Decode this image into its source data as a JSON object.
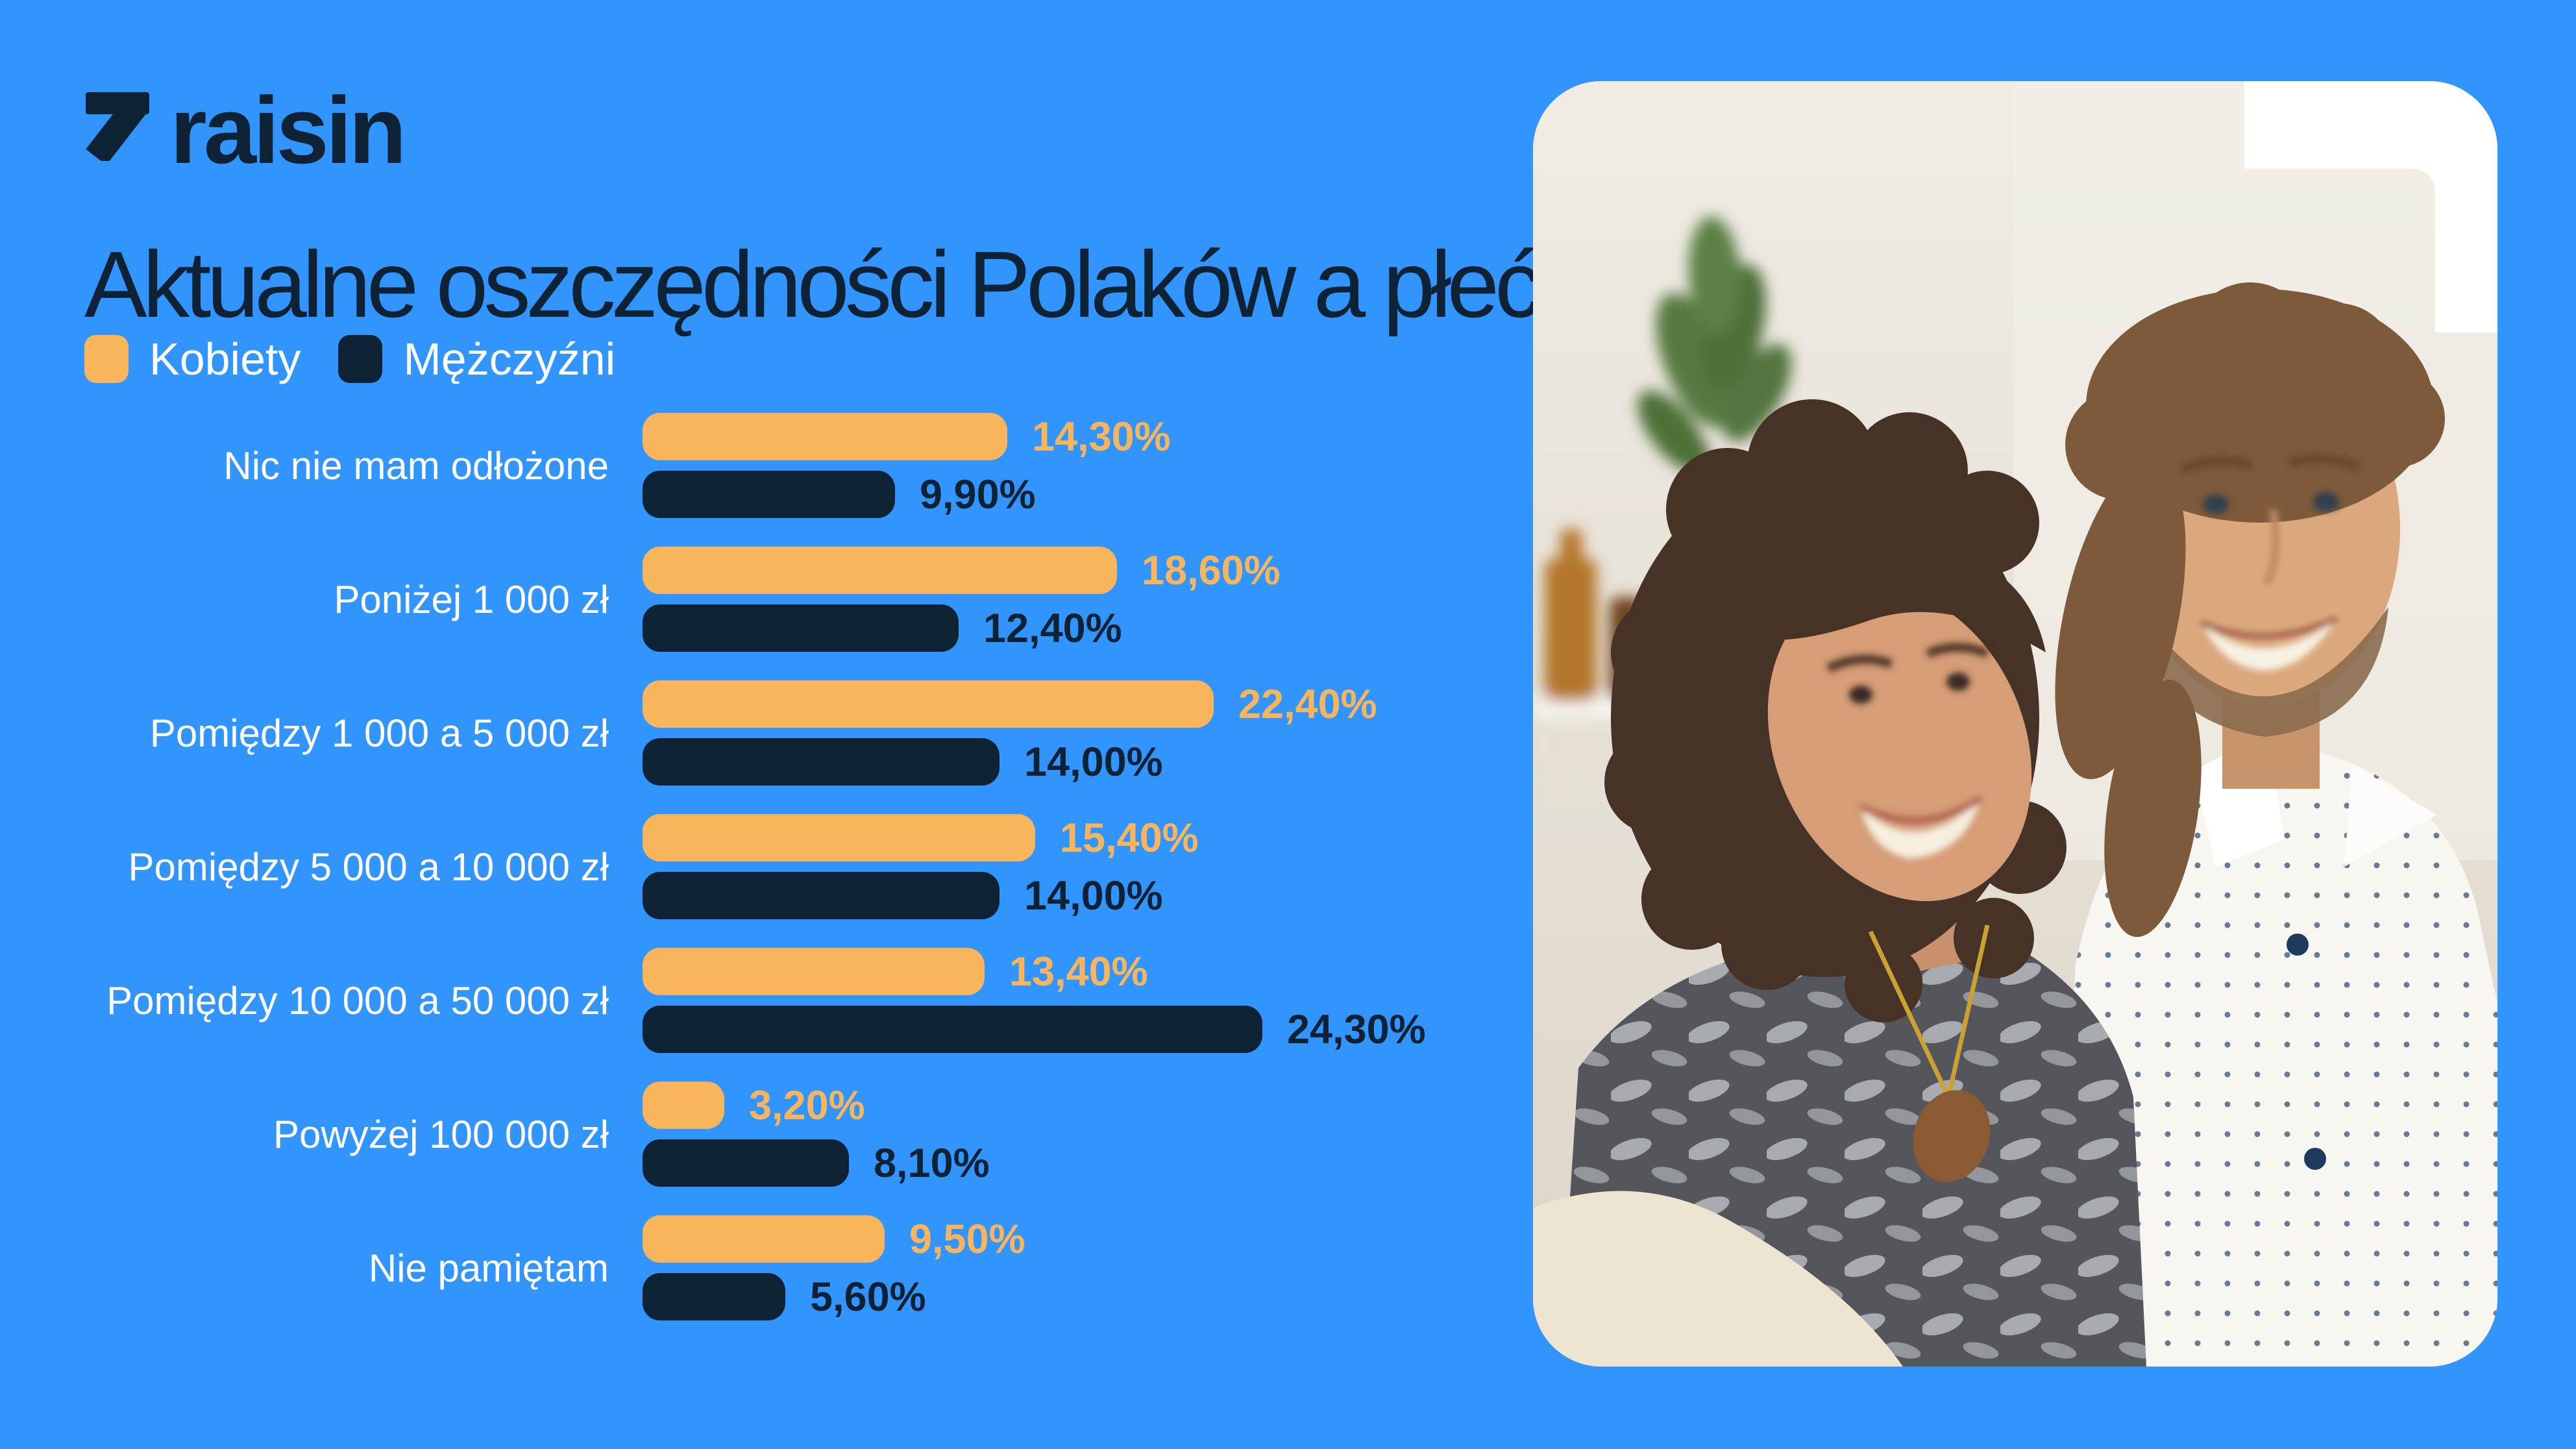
{
  "app": {
    "background_color": "#3295FE",
    "navy": "#0E2236",
    "orange": "#F8B55B",
    "white": "#FFFFFF"
  },
  "logo": {
    "text": "raisin",
    "icon": "arrow-up-right-icon",
    "color": "#0E2236"
  },
  "header": {
    "title": "Aktualne oszczędności Polaków a płeć"
  },
  "legend": {
    "items": [
      {
        "label": "Kobiety",
        "color": "#F8B55B"
      },
      {
        "label": "Mężczyźni",
        "color": "#0E2236"
      }
    ]
  },
  "chart_data": {
    "type": "bar",
    "orientation": "horizontal",
    "title": "Aktualne oszczędności Polaków a płeć",
    "unit": "%",
    "grid": false,
    "legend_position": "top-left",
    "xlim": [
      0,
      25
    ],
    "categories": [
      "Nic nie mam odłożone",
      "Poniżej 1 000 zł",
      "Pomiędzy 1 000 a 5 000 zł",
      "Pomiędzy 5 000 a 10 000 zł",
      "Pomiędzy 10 000 a 50 000 zł",
      "Powyżej 100 000 zł",
      "Nie pamiętam"
    ],
    "series": [
      {
        "name": "Kobiety",
        "color": "#F8B55B",
        "values": [
          14.3,
          18.6,
          22.4,
          15.4,
          13.4,
          3.2,
          9.5
        ],
        "labels": [
          "14,30%",
          "18,60%",
          "22,40%",
          "15,40%",
          "13,40%",
          "3,20%",
          "9,50%"
        ]
      },
      {
        "name": "Mężczyźni",
        "color": "#0E2236",
        "values": [
          9.9,
          12.4,
          14.0,
          14.0,
          24.3,
          8.1,
          5.6
        ],
        "labels": [
          "9,90%",
          "12,40%",
          "14,00%",
          "14,00%",
          "24,30%",
          "8,10%",
          "5,60%"
        ]
      }
    ]
  },
  "photo": {
    "alt": "Smiling couple relaxing together on a sofa, woman leaning on man's shoulder"
  }
}
